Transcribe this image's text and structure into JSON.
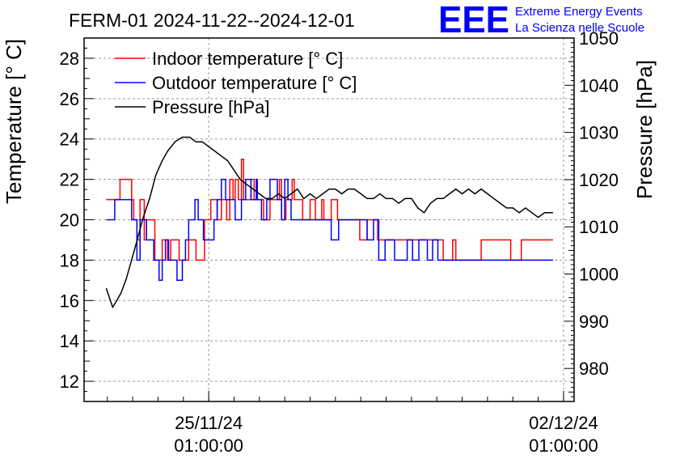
{
  "title": "FERM-01 2024-11-22--2024-12-01",
  "logo": {
    "text": "EEE",
    "line1": "Extreme Energy Events",
    "line2": "La Scienza nelle Scuole",
    "color": "#0000ff"
  },
  "colors": {
    "indoor": "#ff0000",
    "outdoor": "#0000ff",
    "pressure": "#000000"
  },
  "chart_data": {
    "type": "line",
    "title": "FERM-01 2024-11-22--2024-12-01",
    "ylabel": "Temperature [° C]",
    "y2label": "Pressure [hPa]",
    "ylim": [
      11,
      29
    ],
    "y2lim": [
      973,
      1050
    ],
    "yticks": [
      12,
      14,
      16,
      18,
      20,
      22,
      24,
      26,
      28
    ],
    "y2ticks": [
      980,
      990,
      1000,
      1010,
      1020,
      1030,
      1040,
      1050
    ],
    "xlim": [
      "2024-11-22 14:00",
      "2024-12-02 06:00"
    ],
    "xticks": [
      {
        "x": "2024-11-25 01:00",
        "line1": "25/11/24",
        "line2": "01:00:00"
      },
      {
        "x": "2024-12-02 01:00",
        "line1": "02/12/24",
        "line2": "01:00:00"
      }
    ],
    "grid": true,
    "legend": {
      "position": "top-left"
    },
    "series": [
      {
        "name": "Indoor temperature [° C]",
        "axis": "left",
        "x": [
          "2024-11-23 00:30",
          "2024-11-23 07:00",
          "2024-11-23 12:30",
          "2024-11-23 13:30",
          "2024-11-23 15:00",
          "2024-11-23 16:30",
          "2024-11-23 18:30",
          "2024-11-23 19:30",
          "2024-11-23 23:30",
          "2024-11-24 03:00",
          "2024-11-24 05:30",
          "2024-11-24 07:00",
          "2024-11-24 11:00",
          "2024-11-24 15:30",
          "2024-11-24 19:00",
          "2024-11-24 23:00",
          "2024-11-25 02:00",
          "2024-11-25 05:00",
          "2024-11-25 07:00",
          "2024-11-25 09:30",
          "2024-11-25 11:00",
          "2024-11-25 12:30",
          "2024-11-25 13:30",
          "2024-11-25 15:00",
          "2024-11-25 16:30",
          "2024-11-25 17:30",
          "2024-11-25 21:00",
          "2024-11-25 22:30",
          "2024-11-26 01:00",
          "2024-11-26 03:00",
          "2024-11-26 06:00",
          "2024-11-26 10:30",
          "2024-11-26 11:30",
          "2024-11-26 13:30",
          "2024-11-26 15:00",
          "2024-11-26 16:30",
          "2024-11-26 17:30",
          "2024-11-26 19:00",
          "2024-11-26 21:30",
          "2024-11-27 01:00",
          "2024-11-27 03:30",
          "2024-11-27 06:30",
          "2024-11-27 07:30",
          "2024-11-27 11:00",
          "2024-11-27 14:00",
          "2024-11-27 22:00",
          "2024-11-28 00:30",
          "2024-11-28 04:00",
          "2024-11-28 09:00",
          "2024-11-28 12:30",
          "2024-11-28 21:00",
          "2024-11-29 04:30",
          "2024-11-29 08:00",
          "2024-11-29 13:30",
          "2024-11-29 16:00",
          "2024-11-29 20:30",
          "2024-11-29 22:00",
          "2024-11-30 10:00",
          "2024-11-30 19:00",
          "2024-12-01 00:00",
          "2024-12-01 05:00",
          "2024-12-01 08:00",
          "2024-12-01 20:00"
        ],
        "y": [
          21,
          22,
          21,
          20,
          19,
          21,
          19,
          20,
          18,
          19,
          18,
          19,
          18,
          19,
          18,
          20,
          21,
          20,
          21,
          20,
          22,
          21,
          22,
          21,
          23,
          21,
          22,
          21,
          21,
          20,
          21,
          22,
          20,
          21,
          21,
          22,
          21,
          21,
          20,
          21,
          20,
          21,
          20,
          21,
          20,
          20,
          19,
          20,
          19,
          19,
          19,
          19,
          19,
          19,
          18,
          19,
          18,
          19,
          19,
          18,
          19,
          19,
          19
        ]
      },
      {
        "name": "Outdoor temperature [° C]",
        "axis": "left",
        "x": [
          "2024-11-23 00:30",
          "2024-11-23 04:30",
          "2024-11-23 12:30",
          "2024-11-23 15:00",
          "2024-11-23 16:30",
          "2024-11-23 19:30",
          "2024-11-23 23:00",
          "2024-11-24 01:30",
          "2024-11-24 03:00",
          "2024-11-24 04:30",
          "2024-11-24 06:00",
          "2024-11-24 10:00",
          "2024-11-24 12:30",
          "2024-11-24 14:00",
          "2024-11-24 15:30",
          "2024-11-24 18:30",
          "2024-11-24 20:00",
          "2024-11-24 22:30",
          "2024-11-25 03:30",
          "2024-11-25 05:00",
          "2024-11-25 07:00",
          "2024-11-25 09:00",
          "2024-11-25 12:00",
          "2024-11-25 13:30",
          "2024-11-25 16:30",
          "2024-11-25 18:30",
          "2024-11-25 21:00",
          "2024-11-25 23:30",
          "2024-11-26 00:00",
          "2024-11-26 02:00",
          "2024-11-26 04:30",
          "2024-11-26 06:00",
          "2024-11-26 09:30",
          "2024-11-26 11:30",
          "2024-11-26 13:00",
          "2024-11-26 14:30",
          "2024-11-26 16:00",
          "2024-11-26 18:00",
          "2024-11-26 21:30",
          "2024-11-27 01:00",
          "2024-11-27 03:30",
          "2024-11-27 05:30",
          "2024-11-27 07:30",
          "2024-11-27 11:00",
          "2024-11-27 14:30",
          "2024-11-28 01:30",
          "2024-11-28 04:00",
          "2024-11-28 07:00",
          "2024-11-28 09:30",
          "2024-11-28 12:30",
          "2024-11-28 17:00",
          "2024-11-28 23:00",
          "2024-11-29 01:30",
          "2024-11-29 04:30",
          "2024-11-29 08:30",
          "2024-11-29 11:00",
          "2024-11-29 13:30",
          "2024-11-29 16:00",
          "2024-11-29 19:00",
          "2024-11-29 22:00",
          "2024-11-30 01:00",
          "2024-11-30 04:00",
          "2024-11-30 08:00",
          "2024-11-30 12:00",
          "2024-11-30 19:00",
          "2024-12-01 00:00",
          "2024-12-01 06:00",
          "2024-12-01 12:00",
          "2024-12-01 20:00"
        ],
        "y": [
          20,
          21,
          20,
          18,
          20,
          19,
          18,
          17,
          18,
          19,
          18,
          17,
          18,
          19,
          20,
          21,
          20,
          19,
          20,
          21,
          22,
          21,
          21,
          20,
          21,
          22,
          21,
          22,
          21,
          20,
          21,
          22,
          21,
          20,
          22,
          21,
          20,
          20,
          20,
          20,
          20,
          20,
          20,
          19,
          20,
          20,
          19,
          20,
          18,
          19,
          18,
          19,
          18,
          19,
          18,
          19,
          18,
          18,
          18,
          18,
          18,
          18,
          18,
          18,
          18,
          18,
          18,
          18,
          18
        ]
      },
      {
        "name": "Pressure [hPa]",
        "axis": "right",
        "x": [
          "2024-11-23 00:30",
          "2024-11-23 02:00",
          "2024-11-23 03:30",
          "2024-11-23 05:00",
          "2024-11-23 07:30",
          "2024-11-23 10:00",
          "2024-11-23 12:30",
          "2024-11-23 15:00",
          "2024-11-23 18:00",
          "2024-11-23 21:00",
          "2024-11-24 00:00",
          "2024-11-24 03:00",
          "2024-11-24 05:30",
          "2024-11-24 09:00",
          "2024-11-24 12:30",
          "2024-11-24 16:00",
          "2024-11-24 19:00",
          "2024-11-24 22:00",
          "2024-11-25 01:00",
          "2024-11-25 04:00",
          "2024-11-25 07:00",
          "2024-11-25 10:00",
          "2024-11-25 13:00",
          "2024-11-25 16:00",
          "2024-11-25 19:00",
          "2024-11-25 22:00",
          "2024-11-26 01:00",
          "2024-11-26 04:00",
          "2024-11-26 07:00",
          "2024-11-26 10:00",
          "2024-11-26 13:00",
          "2024-11-26 16:00",
          "2024-11-26 19:00",
          "2024-11-26 22:00",
          "2024-11-27 01:00",
          "2024-11-27 04:00",
          "2024-11-27 07:00",
          "2024-11-27 10:00",
          "2024-11-27 13:00",
          "2024-11-27 16:00",
          "2024-11-27 19:00",
          "2024-11-27 22:00",
          "2024-11-28 01:00",
          "2024-11-28 04:00",
          "2024-11-28 07:00",
          "2024-11-28 10:00",
          "2024-11-28 13:00",
          "2024-11-28 16:00",
          "2024-11-28 19:00",
          "2024-11-28 22:00",
          "2024-11-29 01:00",
          "2024-11-29 04:00",
          "2024-11-29 07:00",
          "2024-11-29 10:00",
          "2024-11-29 13:00",
          "2024-11-29 16:00",
          "2024-11-29 19:00",
          "2024-11-29 22:00",
          "2024-11-30 01:00",
          "2024-11-30 04:00",
          "2024-11-30 07:00",
          "2024-11-30 10:00",
          "2024-11-30 13:00",
          "2024-11-30 16:00",
          "2024-11-30 19:00",
          "2024-11-30 22:00",
          "2024-12-01 01:00",
          "2024-12-01 04:00",
          "2024-12-01 07:00",
          "2024-12-01 10:00",
          "2024-12-01 13:00",
          "2024-12-01 16:00",
          "2024-12-01 20:00"
        ],
        "y": [
          997,
          995,
          993,
          994,
          996,
          999,
          1003,
          1007,
          1012,
          1016,
          1021,
          1024,
          1026,
          1028,
          1029,
          1029,
          1028,
          1028,
          1027,
          1026,
          1025,
          1024,
          1022,
          1020,
          1019,
          1018,
          1017,
          1016,
          1016,
          1017,
          1016,
          1017,
          1018,
          1016,
          1017,
          1016,
          1017,
          1018,
          1018,
          1017,
          1018,
          1018,
          1017,
          1016,
          1016,
          1017,
          1016,
          1016,
          1015,
          1016,
          1016,
          1014,
          1013,
          1015,
          1016,
          1016,
          1017,
          1018,
          1017,
          1018,
          1017,
          1018,
          1017,
          1016,
          1015,
          1014,
          1014,
          1013,
          1014,
          1013,
          1012,
          1013,
          1013
        ]
      }
    ]
  }
}
